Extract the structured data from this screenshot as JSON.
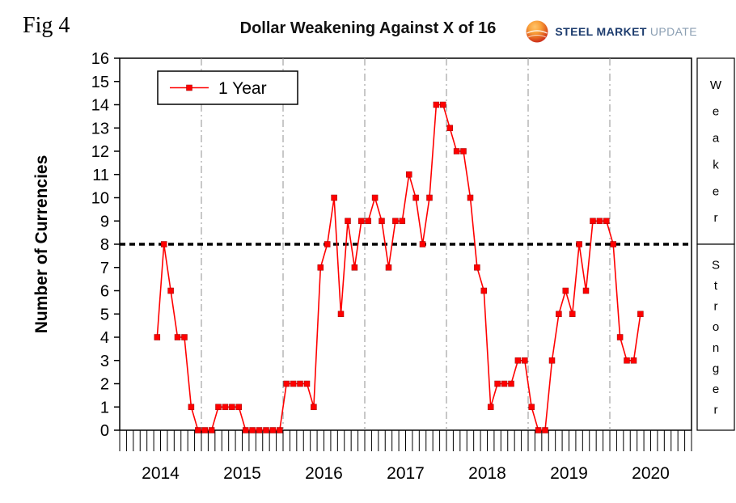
{
  "fig_label": "Fig 4",
  "header": {
    "title": "Dollar Weakening Against X of 16"
  },
  "logo": {
    "brand_strong": "STEEL MARKET",
    "brand_light": "UPDATE",
    "color_strong": "#1d3c6e",
    "color_light": "#8b9fb3",
    "sphere_top_color": "#f9a13a",
    "sphere_bottom_color": "#c21b1b"
  },
  "chart_data": {
    "type": "line",
    "title": "Dollar Weakening Against X of 16",
    "ylabel": "Number of Currencies",
    "ylim": [
      0,
      16
    ],
    "y_tick_step": 1,
    "x_year_labels": [
      "2014",
      "2015",
      "2016",
      "2017",
      "2018",
      "2019",
      "2020"
    ],
    "months_per_year": 12,
    "grid": "vertical dash-dot lines at year boundaries, no horizontal gridlines",
    "legend_position": "top-left inside plot",
    "reference_line_y": 8,
    "line_color": "#ff0000",
    "series": [
      {
        "name": "1 Year",
        "color": "#ff0000",
        "start_month_index": 5,
        "start_label": "Jun 2014",
        "values": [
          4,
          8,
          6,
          4,
          4,
          1,
          0,
          0,
          0,
          1,
          1,
          1,
          1,
          0,
          0,
          0,
          0,
          0,
          0,
          2,
          2,
          2,
          2,
          1,
          7,
          8,
          10,
          5,
          9,
          7,
          9,
          9,
          10,
          9,
          7,
          9,
          9,
          11,
          10,
          8,
          10,
          14,
          14,
          13,
          12,
          12,
          10,
          7,
          6,
          1,
          2,
          2,
          2,
          3,
          3,
          1,
          0,
          0,
          3,
          5,
          6,
          5,
          8,
          6,
          9,
          9,
          9,
          8,
          4,
          3,
          3,
          5
        ]
      }
    ],
    "right_labels": [
      {
        "text": "Weaker",
        "y_range": [
          8,
          16
        ]
      },
      {
        "text": "Stronger",
        "y_range": [
          0,
          8
        ]
      }
    ]
  }
}
